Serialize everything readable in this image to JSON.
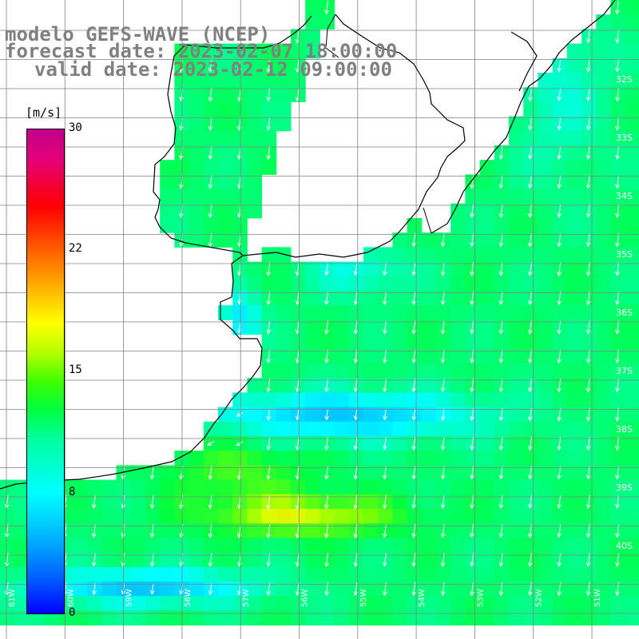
{
  "title": {
    "line1": "modelo GEFS-WAVE (NCEP)",
    "line2": "forecast date: 2023-02-07 18:00:00",
    "line3": "valid date: 2023-02-12 09:00:00"
  },
  "colorbar": {
    "unit": "[m/s]",
    "ticks": [
      "30",
      "22",
      "15",
      "8",
      "0"
    ],
    "range": [
      0,
      30
    ],
    "colors": [
      "#0000ff",
      "#00ffff",
      "#00ff40",
      "#ffff00",
      "#ff0000",
      "#c0008a"
    ]
  },
  "grid": {
    "lat_labels": [
      "32S",
      "33S",
      "34S",
      "35S",
      "36S",
      "37S",
      "38S",
      "39S",
      "40S"
    ],
    "lon_labels": [
      "61W",
      "60W",
      "59W",
      "58W",
      "57W",
      "56W",
      "55W",
      "54W",
      "53W",
      "52W",
      "51W"
    ]
  },
  "colors": {
    "land": "#ffffff",
    "coastline": "#000000",
    "gridline": "#808080",
    "arrow": "#ffffff",
    "title_text": "#808080"
  }
}
